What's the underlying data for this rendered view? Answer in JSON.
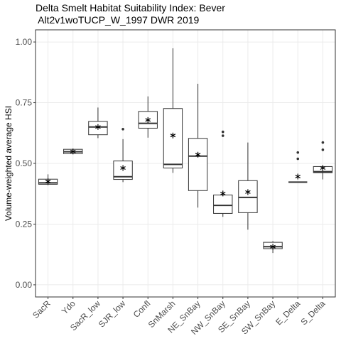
{
  "chart_data": {
    "type": "box",
    "title": [
      "Delta Smelt Habitat Suitability Index: Bever",
      " Alt2v1woTUCP_W_1997 DWR 2019"
    ],
    "ylabel": "Volume-weighted average HSI",
    "categories": [
      "SacR",
      "Ydo",
      "SacR_low",
      "SJR_low",
      "Confl",
      "SnMarsh",
      "NE_SnBay",
      "NW_SnBay",
      "SE_SnBay",
      "SW_SnBay",
      "E_Delta",
      "S_Delta"
    ],
    "boxes": [
      {
        "min": 0.41,
        "q1": 0.414,
        "median": 0.42,
        "q3": 0.435,
        "max": 0.455,
        "mean": 0.426,
        "outliers": []
      },
      {
        "min": 0.54,
        "q1": 0.54,
        "median": 0.548,
        "q3": 0.558,
        "max": 0.56,
        "mean": 0.549,
        "outliers": []
      },
      {
        "min": 0.604,
        "q1": 0.618,
        "median": 0.65,
        "q3": 0.673,
        "max": 0.73,
        "mean": 0.65,
        "outliers": []
      },
      {
        "min": 0.423,
        "q1": 0.434,
        "median": 0.445,
        "q3": 0.51,
        "max": 0.6,
        "mean": 0.481,
        "outliers": [
          0.641
        ]
      },
      {
        "min": 0.606,
        "q1": 0.645,
        "median": 0.665,
        "q3": 0.714,
        "max": 0.776,
        "mean": 0.679,
        "outliers": []
      },
      {
        "min": 0.461,
        "q1": 0.481,
        "median": 0.496,
        "q3": 0.726,
        "max": 0.974,
        "mean": 0.615,
        "outliers": []
      },
      {
        "min": 0.318,
        "q1": 0.388,
        "median": 0.53,
        "q3": 0.603,
        "max": 0.828,
        "mean": 0.536,
        "outliers": []
      },
      {
        "min": 0.28,
        "q1": 0.294,
        "median": 0.327,
        "q3": 0.37,
        "max": 0.37,
        "mean": 0.376,
        "outliers": [
          0.63,
          0.614
        ]
      },
      {
        "min": 0.227,
        "q1": 0.297,
        "median": 0.36,
        "q3": 0.429,
        "max": 0.586,
        "mean": 0.382,
        "outliers": []
      },
      {
        "min": 0.131,
        "q1": 0.149,
        "median": 0.157,
        "q3": 0.175,
        "max": 0.18,
        "mean": 0.157,
        "outliers": []
      },
      {
        "min": 0.423,
        "q1": 0.423,
        "median": 0.423,
        "q3": 0.423,
        "max": 0.423,
        "mean": 0.446,
        "outliers": [
          0.545,
          0.519
        ]
      },
      {
        "min": 0.434,
        "q1": 0.462,
        "median": 0.466,
        "q3": 0.487,
        "max": 0.487,
        "mean": 0.481,
        "outliers": [
          0.586,
          0.556
        ]
      }
    ],
    "ylim": [
      -0.05,
      1.05
    ],
    "yticks": [
      {
        "value": 0,
        "label": "0.00"
      },
      {
        "value": 0.25,
        "label": "0.25"
      },
      {
        "value": 0.5,
        "label": "0.50"
      },
      {
        "value": 0.75,
        "label": "0.75"
      },
      {
        "value": 1,
        "label": "1.00"
      }
    ],
    "grid": true
  }
}
